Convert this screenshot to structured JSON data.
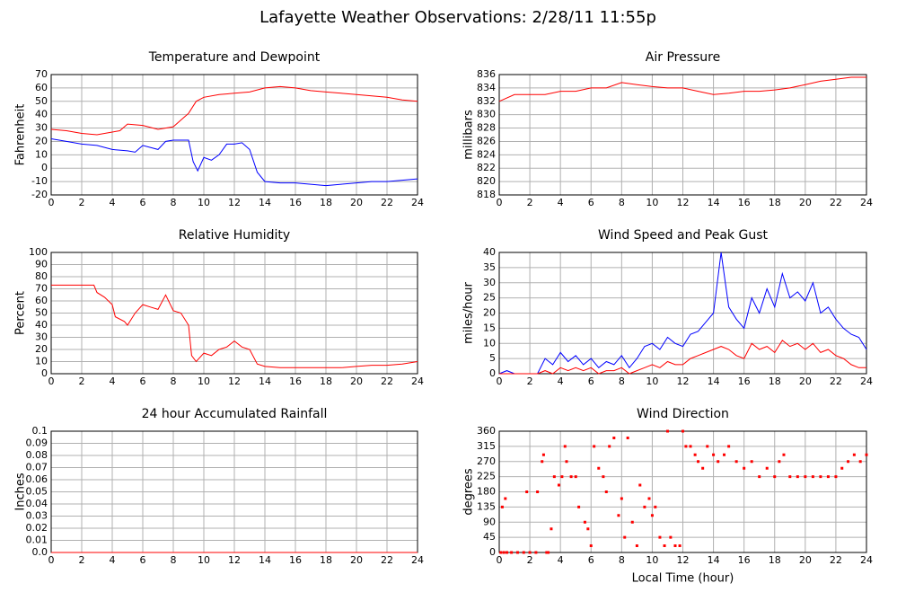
{
  "title": "Lafayette Weather Observations: 2/28/11 11:55p",
  "chart_data": [
    {
      "type": "line",
      "title": "Temperature and Dewpoint",
      "ylabel": "Fahrenheit",
      "xlim": [
        0,
        24
      ],
      "xticks": [
        0,
        2,
        4,
        6,
        8,
        10,
        12,
        14,
        16,
        18,
        20,
        22,
        24
      ],
      "ylim": [
        -20,
        70
      ],
      "yticks": [
        -20,
        -10,
        0,
        10,
        20,
        30,
        40,
        50,
        60,
        70
      ],
      "grid": true,
      "series": [
        {
          "color": "#ff0000",
          "x": [
            0,
            1,
            2,
            3,
            4,
            4.5,
            5,
            6,
            7,
            8,
            8.5,
            9,
            9.5,
            10,
            11,
            12,
            13,
            14,
            15,
            16,
            17,
            18,
            19,
            20,
            21,
            22,
            23,
            24
          ],
          "values": [
            29,
            28,
            26,
            25,
            27,
            28,
            33,
            32,
            29,
            31,
            36,
            41,
            50,
            53,
            55,
            56,
            57,
            60,
            61,
            60,
            58,
            57,
            56,
            55,
            54,
            53,
            51,
            50
          ]
        },
        {
          "color": "#0000ff",
          "x": [
            0,
            1,
            2,
            3,
            4,
            5,
            5.5,
            6,
            7,
            7.5,
            8,
            9,
            9.3,
            9.6,
            10,
            10.5,
            11,
            11.5,
            12,
            12.5,
            13,
            13.5,
            14,
            15,
            16,
            17,
            18,
            19,
            20,
            21,
            22,
            23,
            24
          ],
          "values": [
            22,
            20,
            18,
            17,
            14,
            13,
            12,
            17,
            14,
            20,
            21,
            21,
            5,
            -2,
            8,
            6,
            10,
            18,
            18,
            19,
            14,
            -3,
            -10,
            -11,
            -11,
            -12,
            -13,
            -12,
            -11,
            -10,
            -10,
            -9,
            -8
          ]
        }
      ]
    },
    {
      "type": "line",
      "title": "Air Pressure",
      "ylabel": "millibars",
      "xlim": [
        0,
        24
      ],
      "xticks": [
        0,
        2,
        4,
        6,
        8,
        10,
        12,
        14,
        16,
        18,
        20,
        22,
        24
      ],
      "ylim": [
        818,
        836
      ],
      "yticks": [
        818,
        820,
        822,
        824,
        826,
        828,
        830,
        832,
        834,
        836
      ],
      "grid": true,
      "series": [
        {
          "color": "#ff0000",
          "x": [
            0,
            1,
            2,
            3,
            4,
            5,
            6,
            7,
            8,
            9,
            10,
            11,
            12,
            13,
            14,
            15,
            16,
            17,
            18,
            19,
            20,
            21,
            22,
            23,
            24
          ],
          "values": [
            832,
            833,
            833,
            833,
            833.5,
            833.5,
            834,
            834,
            834.8,
            834.5,
            834.2,
            834,
            834,
            833.5,
            833,
            833.2,
            833.5,
            833.5,
            833.7,
            834,
            834.5,
            835,
            835.3,
            835.6,
            835.6
          ]
        }
      ]
    },
    {
      "type": "line",
      "title": "Relative Humidity",
      "ylabel": "Percent",
      "xlim": [
        0,
        24
      ],
      "xticks": [
        0,
        2,
        4,
        6,
        8,
        10,
        12,
        14,
        16,
        18,
        20,
        22,
        24
      ],
      "ylim": [
        0,
        100
      ],
      "yticks": [
        0,
        10,
        20,
        30,
        40,
        50,
        60,
        70,
        80,
        90,
        100
      ],
      "grid": true,
      "series": [
        {
          "color": "#ff0000",
          "x": [
            0,
            1,
            2,
            2.8,
            3,
            3.5,
            4,
            4.2,
            4.8,
            5,
            5.5,
            6,
            6.5,
            7,
            7.5,
            8,
            8.5,
            9,
            9.2,
            9.5,
            10,
            10.5,
            11,
            11.5,
            12,
            12.5,
            13,
            13.5,
            14,
            15,
            16,
            17,
            18,
            19,
            20,
            21,
            22,
            23,
            24
          ],
          "values": [
            73,
            73,
            73,
            73,
            67,
            63,
            57,
            47,
            43,
            40,
            50,
            57,
            55,
            53,
            65,
            52,
            50,
            40,
            15,
            10,
            17,
            15,
            20,
            22,
            27,
            22,
            20,
            8,
            6,
            5,
            5,
            5,
            5,
            5,
            6,
            7,
            7,
            8,
            10
          ]
        }
      ]
    },
    {
      "type": "line",
      "title": "Wind Speed and Peak Gust",
      "ylabel": "miles/hour",
      "xlim": [
        0,
        24
      ],
      "xticks": [
        0,
        2,
        4,
        6,
        8,
        10,
        12,
        14,
        16,
        18,
        20,
        22,
        24
      ],
      "ylim": [
        0,
        40
      ],
      "yticks": [
        0,
        5,
        10,
        15,
        20,
        25,
        30,
        35,
        40
      ],
      "grid": true,
      "x": [
        0,
        0.5,
        1,
        1.5,
        2,
        2.5,
        3,
        3.5,
        4,
        4.5,
        5,
        5.5,
        6,
        6.5,
        7,
        7.5,
        8,
        8.5,
        9,
        9.5,
        10,
        10.5,
        11,
        11.5,
        12,
        12.5,
        13,
        13.5,
        14,
        14.5,
        15,
        15.5,
        16,
        16.5,
        17,
        17.5,
        18,
        18.5,
        19,
        19.5,
        20,
        20.5,
        21,
        21.5,
        22,
        22.5,
        23,
        23.5,
        24
      ],
      "series": [
        {
          "color": "#0000ff",
          "values": [
            0,
            1,
            0,
            0,
            0,
            0,
            5,
            3,
            7,
            4,
            6,
            3,
            5,
            2,
            4,
            3,
            6,
            2,
            5,
            9,
            10,
            8,
            12,
            10,
            9,
            13,
            14,
            17,
            20,
            40,
            22,
            18,
            15,
            25,
            20,
            28,
            22,
            33,
            25,
            27,
            24,
            30,
            20,
            22,
            18,
            15,
            13,
            12,
            8
          ]
        },
        {
          "color": "#ff0000",
          "values": [
            0,
            0,
            0,
            0,
            0,
            0,
            1,
            0,
            2,
            1,
            2,
            1,
            2,
            0,
            1,
            1,
            2,
            0,
            1,
            2,
            3,
            2,
            4,
            3,
            3,
            5,
            6,
            7,
            8,
            9,
            8,
            6,
            5,
            10,
            8,
            9,
            7,
            11,
            9,
            10,
            8,
            10,
            7,
            8,
            6,
            5,
            3,
            2,
            2
          ]
        }
      ]
    },
    {
      "type": "line",
      "title": "24 hour Accumulated Rainfall",
      "ylabel": "Inches",
      "xlim": [
        0,
        24
      ],
      "xticks": [
        0,
        2,
        4,
        6,
        8,
        10,
        12,
        14,
        16,
        18,
        20,
        22,
        24
      ],
      "ylim": [
        0,
        0.1
      ],
      "yticks": [
        {
          "value": 0,
          "label": "0.0"
        },
        0.01,
        0.02,
        0.03,
        0.04,
        0.05,
        0.06,
        0.07,
        0.08,
        0.09,
        0.1
      ],
      "grid": true,
      "series": [
        {
          "color": "#ff0000",
          "x": [
            0,
            24
          ],
          "values": [
            0,
            0
          ]
        }
      ]
    },
    {
      "type": "scatter",
      "title": "Wind Direction",
      "ylabel": "degrees",
      "xlabel": "Local Time (hour)",
      "xlim": [
        0,
        24
      ],
      "xticks": [
        0,
        2,
        4,
        6,
        8,
        10,
        12,
        14,
        16,
        18,
        20,
        22,
        24
      ],
      "ylim": [
        0,
        360
      ],
      "yticks": [
        0,
        45,
        90,
        135,
        180,
        225,
        270,
        315,
        360
      ],
      "grid": true,
      "series": [
        {
          "color": "#ff0000",
          "x": [
            0.1,
            0.3,
            0.5,
            0.8,
            1.2,
            1.6,
            2,
            2.4,
            0.2,
            0.4,
            1.8,
            2.5,
            2.8,
            2.9,
            3.1,
            3.2,
            3.4,
            3.6,
            3.9,
            4.1,
            4.3,
            4.4,
            4.7,
            5,
            5.2,
            5.6,
            5.8,
            6,
            6.2,
            6.5,
            6.8,
            7,
            7.2,
            7.5,
            7.8,
            8,
            8.2,
            8.4,
            8.7,
            9,
            9.2,
            9.5,
            9.8,
            10,
            10.2,
            10.5,
            10.8,
            11,
            11.2,
            11.5,
            11.8,
            12,
            12.2,
            12.5,
            12.8,
            13,
            13.3,
            13.6,
            14,
            14.3,
            14.7,
            15,
            15.5,
            16,
            16.5,
            17,
            17.5,
            18,
            18.3,
            18.6,
            19,
            19.5,
            20,
            20.5,
            21,
            21.5,
            22,
            22.4,
            22.8,
            23.2,
            23.6,
            24
          ],
          "values": [
            0,
            0,
            0,
            0,
            0,
            0,
            0,
            0,
            135,
            160,
            180,
            180,
            270,
            290,
            0,
            0,
            70,
            225,
            200,
            225,
            315,
            270,
            225,
            225,
            135,
            90,
            70,
            20,
            315,
            250,
            225,
            180,
            315,
            340,
            110,
            160,
            45,
            340,
            90,
            20,
            200,
            135,
            160,
            110,
            135,
            45,
            20,
            360,
            45,
            20,
            20,
            360,
            315,
            315,
            290,
            270,
            250,
            315,
            290,
            270,
            290,
            315,
            270,
            250,
            270,
            225,
            250,
            225,
            270,
            290,
            225,
            225,
            225,
            225,
            225,
            225,
            225,
            250,
            270,
            290,
            270,
            290
          ]
        }
      ]
    }
  ]
}
